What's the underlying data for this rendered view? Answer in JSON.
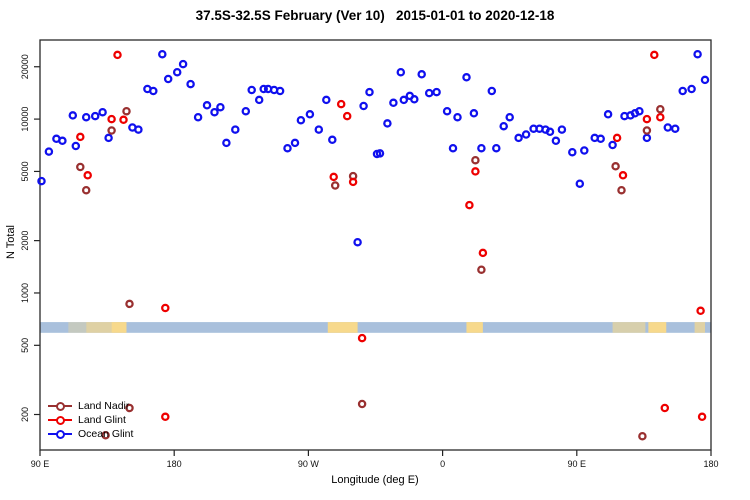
{
  "title": "37.5S-32.5S February (Ver 10)   2015-01-01 to 2020-12-18",
  "axes": {
    "x_label": "Longitude (deg E)",
    "y_label": "N Total",
    "x_ticks": [
      {
        "v": 90,
        "label": "90 E"
      },
      {
        "v": 180,
        "label": "180"
      },
      {
        "v": 270,
        "label": "90 W"
      },
      {
        "v": 360,
        "label": "0"
      },
      {
        "v": 450,
        "label": "90 E"
      },
      {
        "v": 540,
        "label": "180"
      }
    ],
    "y_ticks": [
      200,
      500,
      1000,
      2000,
      5000,
      10000,
      20000
    ],
    "xlim": [
      90,
      540
    ],
    "ylim": [
      125,
      28500
    ],
    "y_scale": "log"
  },
  "map_band": {
    "ocean_color": "#a9c0dc",
    "land_color": "#f7d98c",
    "n_range": [
      590,
      680
    ],
    "land_runs": [
      {
        "from": 109,
        "to": 121,
        "opacity": 0.35
      },
      {
        "from": 121,
        "to": 138,
        "opacity": 0.7
      },
      {
        "from": 138,
        "to": 148,
        "opacity": 1
      },
      {
        "from": 283,
        "to": 303,
        "opacity": 1
      },
      {
        "from": 376,
        "to": 387,
        "opacity": 1
      },
      {
        "from": 474,
        "to": 496,
        "opacity": 0.6
      },
      {
        "from": 498,
        "to": 510,
        "opacity": 1
      },
      {
        "from": 529,
        "to": 536,
        "opacity": 0.7
      }
    ]
  },
  "legend": {
    "items": [
      {
        "label": "Land Nadir"
      },
      {
        "label": "Land Glint"
      },
      {
        "label": "Ocean Glint"
      }
    ]
  },
  "chart_data": {
    "type": "scatter",
    "x_axis_note": "longitude position along axis, degrees east continuing 90E..180..90W..0..90E..180 encoded as 90..540",
    "series": [
      {
        "name": "Ocean Glint",
        "color": "#1010ee",
        "points": [
          [
            162,
            14900
          ],
          [
            112,
            10500
          ],
          [
            121,
            10250
          ],
          [
            127,
            10400
          ],
          [
            132,
            10950
          ],
          [
            136,
            7800
          ],
          [
            152,
            8950
          ],
          [
            156,
            8700
          ],
          [
            101,
            7700
          ],
          [
            105,
            7500
          ],
          [
            114,
            7000
          ],
          [
            96,
            6500
          ],
          [
            91,
            4400
          ],
          [
            172,
            23600
          ],
          [
            186,
            20700
          ],
          [
            182,
            18600
          ],
          [
            176,
            17000
          ],
          [
            166,
            14500
          ],
          [
            191,
            15900
          ],
          [
            202,
            12000
          ],
          [
            196,
            10250
          ],
          [
            207,
            10950
          ],
          [
            211,
            11700
          ],
          [
            228,
            11100
          ],
          [
            232,
            14700
          ],
          [
            240,
            14900
          ],
          [
            237,
            12900
          ],
          [
            221,
            8700
          ],
          [
            215,
            7300
          ],
          [
            243,
            14900
          ],
          [
            247,
            14700
          ],
          [
            251,
            14500
          ],
          [
            282,
            12900
          ],
          [
            311,
            14300
          ],
          [
            307,
            11900
          ],
          [
            271,
            10650
          ],
          [
            265,
            9850
          ],
          [
            277,
            8700
          ],
          [
            286,
            7600
          ],
          [
            261,
            7300
          ],
          [
            256,
            6800
          ],
          [
            316,
            6300
          ],
          [
            332,
            18600
          ],
          [
            346,
            18100
          ],
          [
            376,
            17400
          ],
          [
            338,
            13600
          ],
          [
            341,
            13000
          ],
          [
            334,
            12900
          ],
          [
            327,
            12400
          ],
          [
            351,
            14100
          ],
          [
            356,
            14300
          ],
          [
            393,
            14500
          ],
          [
            363,
            11100
          ],
          [
            370,
            10250
          ],
          [
            381,
            10800
          ],
          [
            323,
            9450
          ],
          [
            318,
            6350
          ],
          [
            367,
            6800
          ],
          [
            386,
            6800
          ],
          [
            405,
            10250
          ],
          [
            401,
            9100
          ],
          [
            411,
            7800
          ],
          [
            416,
            8150
          ],
          [
            421,
            8800
          ],
          [
            425,
            8800
          ],
          [
            429,
            8700
          ],
          [
            432,
            8450
          ],
          [
            440,
            8700
          ],
          [
            436,
            7500
          ],
          [
            396,
            6800
          ],
          [
            447,
            6450
          ],
          [
            455,
            6600
          ],
          [
            462,
            7800
          ],
          [
            466,
            7700
          ],
          [
            471,
            10650
          ],
          [
            452,
            4250
          ],
          [
            482,
            10400
          ],
          [
            486,
            10500
          ],
          [
            489,
            10800
          ],
          [
            492,
            11100
          ],
          [
            497,
            7800
          ],
          [
            511,
            8950
          ],
          [
            516,
            8800
          ],
          [
            474,
            7100
          ],
          [
            531,
            23600
          ],
          [
            536,
            16800
          ],
          [
            521,
            14500
          ],
          [
            527,
            14900
          ],
          [
            303,
            1960
          ]
        ]
      },
      {
        "name": "Land Nadir",
        "color": "#993030",
        "points": [
          [
            148,
            11100
          ],
          [
            138,
            8600
          ],
          [
            117,
            5300
          ],
          [
            121,
            3900
          ],
          [
            300,
            4700
          ],
          [
            288,
            4150
          ],
          [
            382,
            5800
          ],
          [
            506,
            11400
          ],
          [
            497,
            8600
          ],
          [
            476,
            5350
          ],
          [
            480,
            3900
          ],
          [
            150,
            865
          ],
          [
            386,
            1360
          ],
          [
            150,
            218
          ],
          [
            134,
            152
          ],
          [
            306,
            230
          ],
          [
            494,
            150
          ]
        ]
      },
      {
        "name": "Land Glint",
        "color": "#ee0000",
        "points": [
          [
            142,
            23400
          ],
          [
            138,
            10000
          ],
          [
            146,
            9900
          ],
          [
            117,
            7900
          ],
          [
            122,
            4750
          ],
          [
            292,
            12200
          ],
          [
            296,
            10400
          ],
          [
            287,
            4650
          ],
          [
            300,
            4350
          ],
          [
            382,
            5000
          ],
          [
            378,
            3200
          ],
          [
            387,
            1700
          ],
          [
            502,
            23400
          ],
          [
            506,
            10250
          ],
          [
            497,
            10000
          ],
          [
            477,
            7800
          ],
          [
            481,
            4750
          ],
          [
            174,
            820
          ],
          [
            306,
            550
          ],
          [
            533,
            790
          ],
          [
            174,
            194
          ],
          [
            509,
            218
          ],
          [
            534,
            194
          ]
        ]
      }
    ]
  }
}
